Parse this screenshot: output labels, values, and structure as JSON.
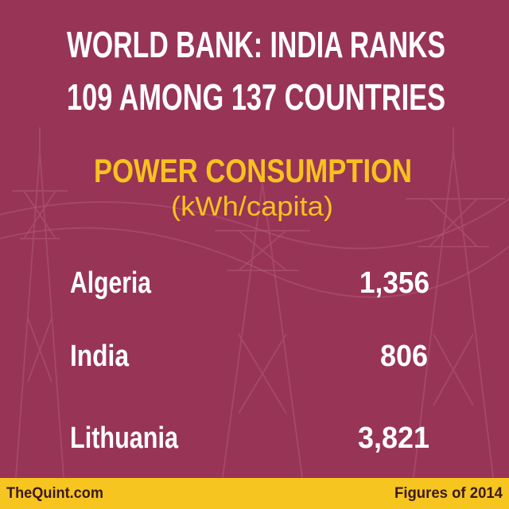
{
  "header": {
    "title_lines": [
      "WORLD BANK: INDIA RANKS",
      "109 AMONG 137 COUNTRIES"
    ],
    "subtitle": "POWER CONSUMPTION",
    "unit": "(kWh/capita)"
  },
  "table": {
    "rows": [
      [
        "Algeria",
        "1,356"
      ],
      [
        "India",
        "806"
      ],
      [
        "Lithuania",
        "3,821"
      ]
    ]
  },
  "footer": {
    "source": "TheQuint.com",
    "note": "Figures of 2014"
  }
}
